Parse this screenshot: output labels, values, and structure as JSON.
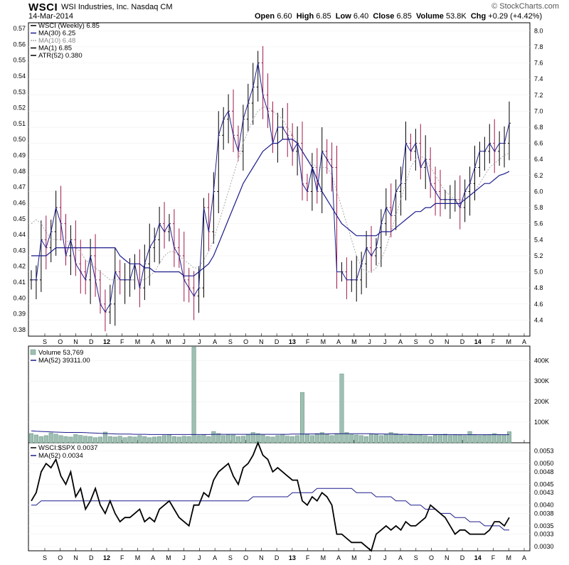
{
  "header": {
    "symbol": "WSCI",
    "company": "WSI Industries, Inc. Nasdaq CM",
    "date": "14-Mar-2014",
    "brand": "© StockCharts.com",
    "open_label": "Open",
    "open": "6.60",
    "high_label": "High",
    "high": "6.85",
    "low_label": "Low",
    "low": "6.40",
    "close_label": "Close",
    "close": "6.85",
    "volume_label": "Volume",
    "volume": "53.8K",
    "chg_label": "Chg",
    "chg": "+0.29 (+4.42%)"
  },
  "colors": {
    "up": "#000000",
    "down": "#a0194d",
    "ma30": "#1c1c8c",
    "ma10": "#aaaaaa",
    "volume_bar": "#9fbfb2",
    "volume_edge": "#5f8f7f",
    "ratio": "#000000"
  },
  "chart_data": [
    {
      "type": "candlestick",
      "title": "WSCI (Weekly) 6.85",
      "legend": [
        "WSCI (Weekly) 6.85",
        "MA(30) 6.25",
        "MA(10) 6.48",
        "MA(1) 6.85",
        "ATR(52) 0.380"
      ],
      "x_ticks": [
        "S",
        "O",
        "N",
        "D",
        "12",
        "F",
        "M",
        "A",
        "M",
        "J",
        "J",
        "A",
        "S",
        "O",
        "N",
        "D",
        "13",
        "F",
        "M",
        "A",
        "M",
        "J",
        "J",
        "A",
        "S",
        "O",
        "N",
        "D",
        "14",
        "F",
        "M",
        "A"
      ],
      "y_right_ticks": [
        "4.4",
        "4.6",
        "4.8",
        "5.0",
        "5.2",
        "5.4",
        "5.6",
        "5.8",
        "6.0",
        "6.2",
        "6.4",
        "6.6",
        "6.8",
        "7.0",
        "7.2",
        "7.4",
        "7.6",
        "7.8",
        "8.0"
      ],
      "y_left_ticks": [
        "0.38",
        "0.39",
        "0.40",
        "0.41",
        "0.42",
        "0.43",
        "0.44",
        "0.45",
        "0.46",
        "0.47",
        "0.48",
        "0.49",
        "0.50",
        "0.51",
        "0.52",
        "0.53",
        "0.54",
        "0.55",
        "0.56",
        "0.57"
      ],
      "ylim_right": [
        4.2,
        8.1
      ],
      "close": [
        4.9,
        4.9,
        5.4,
        5.3,
        5.5,
        5.8,
        5.6,
        5.2,
        5.4,
        5.1,
        5.0,
        4.9,
        5.2,
        4.9,
        4.6,
        4.5,
        4.6,
        5.0,
        4.9,
        4.9,
        4.9,
        5.1,
        4.8,
        5.1,
        5.3,
        5.4,
        5.6,
        5.5,
        5.6,
        5.3,
        5.2,
        4.9,
        4.8,
        4.7,
        4.8,
        5.8,
        5.5,
        6.0,
        6.7,
        6.9,
        7.0,
        6.7,
        6.5,
        6.9,
        7.1,
        7.3,
        7.6,
        7.2,
        7.0,
        6.6,
        6.8,
        6.8,
        6.7,
        6.5,
        6.6,
        6.1,
        6.0,
        6.3,
        6.0,
        6.5,
        6.4,
        6.3,
        5.0,
        5.0,
        4.9,
        4.9,
        4.9,
        5.1,
        5.3,
        5.2,
        5.3,
        5.6,
        5.8,
        5.7,
        6.0,
        6.1,
        6.6,
        6.5,
        6.6,
        6.3,
        6.4,
        6.1,
        6.0,
        5.9,
        5.9,
        5.9,
        5.9,
        5.8,
        6.0,
        6.1,
        6.3,
        6.5,
        6.5,
        6.6,
        6.5,
        6.6,
        6.6,
        6.85
      ],
      "ma30": [
        5.2,
        5.2,
        5.2,
        5.2,
        5.25,
        5.3,
        5.3,
        5.3,
        5.3,
        5.3,
        5.3,
        5.3,
        5.3,
        5.3,
        5.3,
        5.3,
        5.3,
        5.3,
        5.2,
        5.15,
        5.1,
        5.1,
        5.1,
        5.05,
        5.05,
        5.0,
        5.0,
        5.0,
        5.0,
        5.0,
        5.0,
        4.95,
        4.95,
        4.95,
        5.0,
        5.05,
        5.1,
        5.2,
        5.35,
        5.5,
        5.65,
        5.8,
        5.95,
        6.1,
        6.2,
        6.3,
        6.4,
        6.5,
        6.55,
        6.6,
        6.6,
        6.65,
        6.65,
        6.65,
        6.6,
        6.5,
        6.4,
        6.3,
        6.15,
        6.0,
        5.9,
        5.8,
        5.7,
        5.6,
        5.55,
        5.5,
        5.45,
        5.45,
        5.45,
        5.45,
        5.45,
        5.5,
        5.5,
        5.5,
        5.55,
        5.6,
        5.65,
        5.7,
        5.75,
        5.75,
        5.8,
        5.8,
        5.85,
        5.85,
        5.85,
        5.85,
        5.85,
        5.85,
        5.9,
        5.95,
        6.0,
        6.05,
        6.1,
        6.1,
        6.15,
        6.2,
        6.22,
        6.25
      ],
      "ma10": [
        5.6,
        5.65,
        5.6,
        5.5,
        5.4,
        5.4,
        5.4,
        5.4,
        5.35,
        5.3,
        5.25,
        5.15,
        5.1,
        5.05,
        5.0,
        4.95,
        4.9,
        4.9,
        4.9,
        4.9,
        4.9,
        4.9,
        4.9,
        4.9,
        4.95,
        5.0,
        5.1,
        5.2,
        5.25,
        5.25,
        5.2,
        5.15,
        5.1,
        5.05,
        5.05,
        5.15,
        5.25,
        5.4,
        5.6,
        5.8,
        6.0,
        6.2,
        6.4,
        6.6,
        6.75,
        6.9,
        7.0,
        7.05,
        7.05,
        7.0,
        6.95,
        6.9,
        6.8,
        6.7,
        6.6,
        6.5,
        6.4,
        6.35,
        6.3,
        6.3,
        6.3,
        6.2,
        6.0,
        5.8,
        5.6,
        5.4,
        5.2,
        5.05,
        5.0,
        5.0,
        5.05,
        5.15,
        5.3,
        5.5,
        5.7,
        5.9,
        6.1,
        6.3,
        6.4,
        6.45,
        6.4,
        6.3,
        6.2,
        6.1,
        6.0,
        5.95,
        5.9,
        5.9,
        5.9,
        5.95,
        6.0,
        6.1,
        6.2,
        6.3,
        6.35,
        6.4,
        6.45,
        6.48
      ]
    },
    {
      "type": "bar",
      "title": "Volume 53,769",
      "legend": [
        "Volume 53,769",
        "MA(52) 39311.00"
      ],
      "y_right_ticks": [
        "100K",
        "200K",
        "300K",
        "400K"
      ],
      "ylim": [
        0,
        470000
      ],
      "values": [
        45000,
        38000,
        30000,
        35000,
        48000,
        42000,
        35000,
        30000,
        28000,
        40000,
        36000,
        32000,
        30000,
        25000,
        28000,
        52000,
        30000,
        28000,
        32000,
        25000,
        30000,
        28000,
        35000,
        30000,
        25000,
        28000,
        30000,
        35000,
        40000,
        30000,
        28000,
        32000,
        30000,
        465000,
        35000,
        40000,
        30000,
        55000,
        45000,
        35000,
        40000,
        38000,
        30000,
        32000,
        40000,
        50000,
        45000,
        38000,
        30000,
        28000,
        35000,
        40000,
        32000,
        30000,
        35000,
        245000,
        40000,
        35000,
        45000,
        50000,
        40000,
        35000,
        45000,
        335000,
        50000,
        40000,
        38000,
        35000,
        30000,
        42000,
        40000,
        35000,
        40000,
        50000,
        45000,
        40000,
        35000,
        42000,
        40000,
        38000,
        35000,
        30000,
        38000,
        40000,
        42000,
        35000,
        40000,
        38000,
        35000,
        55000,
        40000,
        35000,
        38000,
        40000,
        45000,
        40000,
        38000,
        53769
      ],
      "ma52": [
        58000,
        56000,
        55000,
        54000,
        53000,
        52000,
        51000,
        50000,
        50000,
        50000,
        50000,
        49000,
        48000,
        47000,
        46000,
        45000,
        44000,
        43000,
        42000,
        42000,
        42000,
        41000,
        41000,
        41000,
        40000,
        40000,
        40000,
        40000,
        40000,
        40000,
        40000,
        40000,
        40000,
        40000,
        40000,
        40000,
        40000,
        41000,
        41000,
        41000,
        41000,
        41000,
        41000,
        41000,
        41000,
        41000,
        41000,
        41000,
        41000,
        41000,
        41000,
        41000,
        41000,
        42000,
        42000,
        42000,
        43000,
        43000,
        43000,
        43000,
        43000,
        44000,
        44000,
        44000,
        44000,
        44000,
        44000,
        44000,
        44000,
        44000,
        43000,
        43000,
        42000,
        42000,
        41000,
        41000,
        41000,
        40000,
        40000,
        40000,
        40000,
        40000,
        40000,
        40000,
        39500,
        39500,
        39500,
        39500,
        39500,
        39500,
        39300,
        39300,
        39300,
        39300,
        39300,
        39300,
        39311,
        39311
      ]
    },
    {
      "type": "line",
      "title": "WSCI:$SPX 0.0037",
      "legend": [
        "WSCI:$SPX 0.0037",
        "MA(52) 0.0034"
      ],
      "y_right_ticks": [
        "0.0030",
        "0.0033",
        "0.0035",
        "0.0038",
        "0.0040",
        "0.0043",
        "0.0045",
        "0.0048",
        "0.0050",
        "0.0053"
      ],
      "ylim": [
        0.0029,
        0.0055
      ],
      "values": [
        0.0041,
        0.0043,
        0.0048,
        0.005,
        0.0049,
        0.0051,
        0.0047,
        0.0045,
        0.0048,
        0.0042,
        0.0044,
        0.0039,
        0.0041,
        0.0044,
        0.004,
        0.0038,
        0.0041,
        0.0038,
        0.0036,
        0.0037,
        0.0037,
        0.0038,
        0.0039,
        0.0036,
        0.0037,
        0.0036,
        0.0039,
        0.004,
        0.0041,
        0.0039,
        0.0037,
        0.0036,
        0.0035,
        0.004,
        0.004,
        0.0043,
        0.0042,
        0.0046,
        0.0048,
        0.0049,
        0.005,
        0.0047,
        0.0045,
        0.0049,
        0.005,
        0.0052,
        0.0055,
        0.0052,
        0.0051,
        0.0048,
        0.0049,
        0.0048,
        0.0047,
        0.0046,
        0.0046,
        0.0041,
        0.004,
        0.0042,
        0.0041,
        0.0043,
        0.0042,
        0.004,
        0.0033,
        0.0033,
        0.0032,
        0.0031,
        0.0031,
        0.0031,
        0.003,
        0.0029,
        0.0033,
        0.0034,
        0.0035,
        0.0034,
        0.0035,
        0.0034,
        0.0036,
        0.0035,
        0.0035,
        0.0036,
        0.0037,
        0.004,
        0.0039,
        0.0038,
        0.0037,
        0.0035,
        0.0033,
        0.0034,
        0.0034,
        0.0033,
        0.0033,
        0.0033,
        0.0033,
        0.0034,
        0.0036,
        0.0036,
        0.0035,
        0.0037
      ],
      "ma52": [
        0.004,
        0.004,
        0.0041,
        0.0041,
        0.0041,
        0.0041,
        0.0041,
        0.0041,
        0.0041,
        0.0041,
        0.0041,
        0.0041,
        0.0041,
        0.0041,
        0.0041,
        0.0041,
        0.0041,
        0.0041,
        0.0041,
        0.0041,
        0.0041,
        0.0041,
        0.0041,
        0.0041,
        0.0041,
        0.0041,
        0.0041,
        0.0041,
        0.0041,
        0.0041,
        0.0041,
        0.0041,
        0.0041,
        0.0041,
        0.0041,
        0.0041,
        0.0041,
        0.0041,
        0.0041,
        0.0041,
        0.0041,
        0.0041,
        0.0041,
        0.0041,
        0.0041,
        0.0042,
        0.0042,
        0.0042,
        0.0042,
        0.0042,
        0.0042,
        0.0042,
        0.0042,
        0.0043,
        0.0043,
        0.0043,
        0.0043,
        0.0043,
        0.0044,
        0.0044,
        0.0044,
        0.0044,
        0.0044,
        0.0044,
        0.0044,
        0.0044,
        0.0043,
        0.0043,
        0.0043,
        0.0043,
        0.0042,
        0.0042,
        0.0042,
        0.0042,
        0.0041,
        0.0041,
        0.0041,
        0.004,
        0.004,
        0.004,
        0.0039,
        0.0039,
        0.0039,
        0.0038,
        0.0038,
        0.0038,
        0.0037,
        0.0037,
        0.0037,
        0.0036,
        0.0036,
        0.0036,
        0.0035,
        0.0035,
        0.0035,
        0.0035,
        0.0034,
        0.0034
      ]
    }
  ]
}
